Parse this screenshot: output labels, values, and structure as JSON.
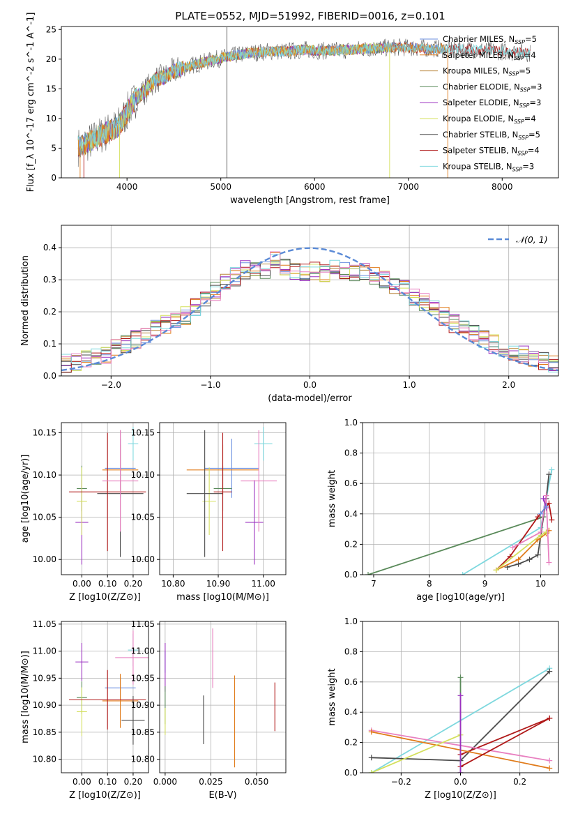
{
  "figure_title": "PLATE=0552, MJD=51992, FIBERID=0016, z=0.101",
  "colors": {
    "Chabrier MILES": "#6b8fdf",
    "Salpeter MILES": "#e07b1a",
    "Kroupa MILES": "#b8863b",
    "Chabrier ELODIE": "#5a8a5a",
    "Salpeter ELODIE": "#9b30c0",
    "Kroupa ELODIE": "#d4e05c",
    "Chabrier STELIB": "#4a4a4a",
    "Salpeter STELIB": "#b01818",
    "Kroupa STELIB": "#7ed8de",
    "Kroupa STELIB (alt)": "#e880c0",
    "normal": "#5a8ad6",
    "grid": "#b0b0b0"
  },
  "chart_data": [
    {
      "type": "line",
      "title": "PLATE=0552, MJD=51992, FIBERID=0016, z=0.101",
      "xlabel": "wavelength [Angstrom, rest frame]",
      "ylabel": "Flux [f_λ 10^-17 erg cm^-2 s^-1 A^-1]",
      "xlim": [
        3300,
        8600
      ],
      "ylim": [
        0,
        25.5
      ],
      "xticks": [
        4000,
        5000,
        6000,
        7000,
        8000
      ],
      "yticks": [
        0,
        5,
        10,
        15,
        20,
        25
      ],
      "grid": false,
      "legend_position": "right",
      "legend": [
        {
          "label": "Chabrier MILES, N",
          "sub": "SSP",
          "suffix": "=5"
        },
        {
          "label": "Salpeter MILES, N",
          "sub": "SSP",
          "suffix": "=4"
        },
        {
          "label": "Kroupa MILES, N",
          "sub": "SSP",
          "suffix": "=5"
        },
        {
          "label": "Chabrier ELODIE, N",
          "sub": "SSP",
          "suffix": "=3"
        },
        {
          "label": "Salpeter ELODIE, N",
          "sub": "SSP",
          "suffix": "=3"
        },
        {
          "label": "Kroupa ELODIE, N",
          "sub": "SSP",
          "suffix": "=4"
        },
        {
          "label": "Chabrier STELIB, N",
          "sub": "SSP",
          "suffix": "=5"
        },
        {
          "label": "Salpeter STELIB, N",
          "sub": "SSP",
          "suffix": "=4"
        },
        {
          "label": "Kroupa STELIB, N",
          "sub": "SSP",
          "suffix": "=3"
        }
      ],
      "continuum_x": [
        3480,
        3600,
        3700,
        3800,
        3900,
        4000,
        4100,
        4200,
        4300,
        4400,
        4500,
        4700,
        4900,
        5100,
        5300,
        5500,
        5700,
        5900,
        6100,
        6300,
        6600,
        6900,
        7200,
        7500,
        7800,
        8100,
        8300
      ],
      "continuum_y": [
        5.2,
        6.0,
        7.0,
        7.8,
        8.6,
        11.0,
        13.5,
        14.8,
        16.5,
        17.0,
        18.0,
        19.0,
        19.8,
        20.5,
        21.0,
        21.3,
        21.3,
        21.6,
        21.4,
        21.5,
        21.8,
        22.0,
        21.8,
        21.7,
        21.5,
        21.2,
        21.0
      ]
    },
    {
      "type": "bar",
      "xlabel": "(data-model)/error",
      "ylabel": "Normed distribution",
      "xlim": [
        -2.5,
        2.5
      ],
      "ylim": [
        0,
        0.47
      ],
      "xticks": [
        -2,
        -1,
        0,
        1,
        2
      ],
      "yticks": [
        0.0,
        0.1,
        0.2,
        0.3,
        0.4
      ],
      "grid": true,
      "legend_position": "top-right",
      "legend": [
        "𝒩(0, 1)"
      ],
      "bin_width": 0.1,
      "bin_centers": [
        -2.45,
        -2.35,
        -2.25,
        -2.15,
        -2.05,
        -1.95,
        -1.85,
        -1.75,
        -1.65,
        -1.55,
        -1.45,
        -1.35,
        -1.25,
        -1.15,
        -1.05,
        -0.95,
        -0.85,
        -0.75,
        -0.65,
        -0.55,
        -0.45,
        -0.35,
        -0.25,
        -0.15,
        -0.05,
        0.05,
        0.15,
        0.25,
        0.35,
        0.45,
        0.55,
        0.65,
        0.75,
        0.85,
        0.95,
        1.05,
        1.15,
        1.25,
        1.35,
        1.45,
        1.55,
        1.65,
        1.75,
        1.85,
        1.95,
        2.05,
        2.15,
        2.25,
        2.35,
        2.45
      ],
      "histogram_base": [
        0.04,
        0.045,
        0.05,
        0.055,
        0.065,
        0.085,
        0.1,
        0.115,
        0.13,
        0.145,
        0.16,
        0.175,
        0.19,
        0.215,
        0.235,
        0.265,
        0.29,
        0.31,
        0.33,
        0.34,
        0.33,
        0.36,
        0.34,
        0.33,
        0.32,
        0.33,
        0.32,
        0.34,
        0.33,
        0.32,
        0.33,
        0.315,
        0.3,
        0.28,
        0.27,
        0.25,
        0.23,
        0.21,
        0.185,
        0.165,
        0.15,
        0.13,
        0.115,
        0.1,
        0.085,
        0.075,
        0.065,
        0.055,
        0.045,
        0.04
      ],
      "normal_curve": {
        "mu": 0,
        "sigma": 1
      }
    },
    {
      "type": "scatter",
      "xlabel": "Z [log10(Z/Z⊙)]",
      "ylabel": "age  [log10(age/yr)]",
      "xlim": [
        -0.08,
        0.26
      ],
      "ylim": [
        9.982,
        10.162
      ],
      "xticks": [
        0.0,
        0.1,
        0.2
      ],
      "yticks": [
        10.0,
        10.05,
        10.1,
        10.15
      ],
      "grid": true,
      "points": [
        {
          "s": "Chabrier MILES",
          "x": 0.15,
          "y": 10.108,
          "xerr": 0.06,
          "yerr": 0.035
        },
        {
          "s": "Salpeter MILES",
          "x": 0.15,
          "y": 10.106,
          "xerr": 0.07,
          "yerr": 0.03
        },
        {
          "s": "Chabrier ELODIE",
          "x": 0.0,
          "y": 10.084,
          "xerr": 0.02,
          "yerr": 0.027
        },
        {
          "s": "Salpeter ELODIE",
          "x": 0.0,
          "y": 10.044,
          "xerr": 0.025,
          "yerr": 0.05
        },
        {
          "s": "Kroupa ELODIE",
          "x": 0.0,
          "y": 10.069,
          "xerr": 0.02,
          "yerr": 0.04
        },
        {
          "s": "Chabrier STELIB",
          "x": 0.15,
          "y": 10.078,
          "xerr": 0.09,
          "yerr": 0.075
        },
        {
          "s": "Salpeter STELIB",
          "x": 0.1,
          "y": 10.08,
          "xerr": 0.15,
          "yerr": 0.07
        },
        {
          "s": "Kroupa STELIB",
          "x": 0.2,
          "y": 10.137,
          "xerr": 0.02,
          "yerr": 0.02
        },
        {
          "s": "Kroupa STELIB (alt)",
          "x": 0.15,
          "y": 10.093,
          "xerr": 0.07,
          "yerr": 0.06
        }
      ]
    },
    {
      "type": "scatter",
      "xlabel": "mass [log10(M/M⊙)]",
      "ylabel": "",
      "xlim": [
        10.77,
        11.05
      ],
      "ylim": [
        9.982,
        10.162
      ],
      "xticks": [
        10.8,
        10.9,
        11.0
      ],
      "yticks": [
        10.0,
        10.05,
        10.1,
        10.15
      ],
      "grid": true,
      "points": [
        {
          "s": "Chabrier MILES",
          "x": 10.93,
          "y": 10.108,
          "xerr": 0.06,
          "yerr": 0.035
        },
        {
          "s": "Salpeter MILES",
          "x": 10.91,
          "y": 10.106,
          "xerr": 0.08,
          "yerr": 0.03
        },
        {
          "s": "Chabrier ELODIE",
          "x": 10.91,
          "y": 10.084,
          "xerr": 0.02,
          "yerr": 0.027
        },
        {
          "s": "Salpeter ELODIE",
          "x": 10.98,
          "y": 10.044,
          "xerr": 0.02,
          "yerr": 0.05
        },
        {
          "s": "Kroupa ELODIE",
          "x": 10.88,
          "y": 10.069,
          "xerr": 0.015,
          "yerr": 0.04
        },
        {
          "s": "Chabrier STELIB",
          "x": 10.87,
          "y": 10.078,
          "xerr": 0.04,
          "yerr": 0.075
        },
        {
          "s": "Salpeter STELIB",
          "x": 10.91,
          "y": 10.08,
          "xerr": 0.02,
          "yerr": 0.07
        },
        {
          "s": "Kroupa STELIB",
          "x": 11.0,
          "y": 10.137,
          "xerr": 0.02,
          "yerr": 0.02
        },
        {
          "s": "Kroupa STELIB (alt)",
          "x": 10.99,
          "y": 10.093,
          "xerr": 0.04,
          "yerr": 0.06
        }
      ]
    },
    {
      "type": "line",
      "xlabel": "age  [log10(age/yr)]",
      "ylabel": "mass weight",
      "xlim": [
        6.8,
        10.32
      ],
      "ylim": [
        0,
        1.0
      ],
      "xticks": [
        7,
        8,
        9,
        10
      ],
      "yticks": [
        0.0,
        0.2,
        0.4,
        0.6,
        0.8,
        1.0
      ],
      "grid": true,
      "series": [
        {
          "s": "Chabrier ELODIE",
          "x": [
            6.9,
            10.05
          ],
          "y": [
            0.0,
            0.38
          ]
        },
        {
          "s": "Kroupa STELIB",
          "x": [
            8.6,
            10.0,
            10.2
          ],
          "y": [
            0.0,
            0.31,
            0.69
          ]
        },
        {
          "s": "Chabrier STELIB",
          "x": [
            9.4,
            9.6,
            9.8,
            9.95,
            10.1,
            10.15
          ],
          "y": [
            0.05,
            0.07,
            0.1,
            0.13,
            0.5,
            0.66
          ]
        },
        {
          "s": "Salpeter STELIB",
          "x": [
            9.2,
            9.45,
            9.95,
            10.15,
            10.2
          ],
          "y": [
            0.03,
            0.12,
            0.38,
            0.47,
            0.36
          ]
        },
        {
          "s": "Salpeter MILES",
          "x": [
            9.2,
            9.6,
            9.95,
            10.1,
            10.15
          ],
          "y": [
            0.03,
            0.1,
            0.23,
            0.27,
            0.29
          ]
        },
        {
          "s": "Kroupa ELODIE",
          "x": [
            9.2,
            10.0,
            10.1
          ],
          "y": [
            0.03,
            0.26,
            0.28
          ]
        },
        {
          "s": "Kroupa STELIB (alt)",
          "x": [
            9.5,
            10.0,
            10.1,
            10.15
          ],
          "y": [
            0.18,
            0.28,
            0.52,
            0.08
          ]
        },
        {
          "s": "Salpeter ELODIE",
          "x": [
            10.05,
            10.1
          ],
          "y": [
            0.5,
            0.44
          ]
        },
        {
          "s": "Chabrier MILES",
          "x": [
            10.0,
            10.1
          ],
          "y": [
            0.4,
            0.45
          ]
        }
      ]
    },
    {
      "type": "scatter",
      "xlabel": "Z [log10(Z/Z⊙)]",
      "ylabel": "mass [log10(M/M⊙)]",
      "xlim": [
        -0.08,
        0.26
      ],
      "ylim": [
        10.775,
        11.055
      ],
      "xticks": [
        0.0,
        0.1,
        0.2
      ],
      "yticks": [
        10.8,
        10.85,
        10.9,
        10.95,
        11.0,
        11.05
      ],
      "grid": true,
      "points": [
        {
          "s": "Chabrier MILES",
          "x": 0.15,
          "y": 10.932,
          "xerr": 0.06,
          "yerr": 0.02
        },
        {
          "s": "Salpeter MILES",
          "x": 0.15,
          "y": 10.908,
          "xerr": 0.07,
          "yerr": 0.05
        },
        {
          "s": "Chabrier ELODIE",
          "x": 0.0,
          "y": 10.914,
          "xerr": 0.02,
          "yerr": 0.03
        },
        {
          "s": "Salpeter ELODIE",
          "x": 0.0,
          "y": 10.98,
          "xerr": 0.025,
          "yerr": 0.035
        },
        {
          "s": "Kroupa ELODIE",
          "x": 0.0,
          "y": 10.888,
          "xerr": 0.02,
          "yerr": 0.045
        },
        {
          "s": "Chabrier STELIB",
          "x": 0.2,
          "y": 10.872,
          "xerr": 0.045,
          "yerr": 0.045
        },
        {
          "s": "Salpeter STELIB",
          "x": 0.1,
          "y": 10.91,
          "xerr": 0.15,
          "yerr": 0.055
        },
        {
          "s": "Kroupa STELIB",
          "x": 0.2,
          "y": 11.002,
          "xerr": 0.02,
          "yerr": 0.03
        },
        {
          "s": "Kroupa STELIB (alt)",
          "x": 0.2,
          "y": 10.988,
          "xerr": 0.07,
          "yerr": 0.05
        }
      ]
    },
    {
      "type": "scatter",
      "xlabel": "E(B-V)",
      "ylabel": "",
      "xlim": [
        -0.003,
        0.066
      ],
      "ylim": [
        10.775,
        11.055
      ],
      "xticks": [
        0.0,
        0.025,
        0.05
      ],
      "yticks": [
        10.8,
        10.85,
        10.9,
        10.95,
        11.0,
        11.05
      ],
      "grid": true,
      "points": [
        {
          "s": "Chabrier MILES",
          "x": 0.0,
          "y": 10.98,
          "xerr": 0,
          "yerr": 0.02
        },
        {
          "s": "Salpeter ELODIE",
          "x": 0.0,
          "y": 10.97,
          "xerr": 0,
          "yerr": 0.045
        },
        {
          "s": "Chabrier ELODIE",
          "x": 0.0,
          "y": 10.9,
          "xerr": 0,
          "yerr": 0.035
        },
        {
          "s": "Kroupa ELODIE",
          "x": 0.0,
          "y": 10.87,
          "xerr": 0,
          "yerr": 0.025
        },
        {
          "s": "Chabrier STELIB",
          "x": 0.021,
          "y": 10.873,
          "xerr": 0,
          "yerr": 0.045
        },
        {
          "s": "Kroupa STELIB (alt)",
          "x": 0.026,
          "y": 10.987,
          "xerr": 0,
          "yerr": 0.055
        },
        {
          "s": "Salpeter MILES",
          "x": 0.038,
          "y": 10.87,
          "xerr": 0,
          "yerr": 0.085
        },
        {
          "s": "Salpeter STELIB",
          "x": 0.06,
          "y": 10.897,
          "xerr": 0,
          "yerr": 0.045
        }
      ]
    },
    {
      "type": "line",
      "xlabel": "Z [log10(Z/Z⊙)]",
      "ylabel": "mass weight",
      "xlim": [
        -0.33,
        0.33
      ],
      "ylim": [
        0,
        1.0
      ],
      "xticks": [
        -0.2,
        0.0,
        0.2
      ],
      "yticks": [
        0.0,
        0.2,
        0.4,
        0.6,
        0.8,
        1.0
      ],
      "grid": true,
      "series": [
        {
          "s": "Kroupa STELIB",
          "x": [
            -0.3,
            0.3
          ],
          "y": [
            0.0,
            0.69
          ]
        },
        {
          "s": "Chabrier STELIB",
          "x": [
            -0.3,
            0.0,
            0.3
          ],
          "y": [
            0.1,
            0.08,
            0.67
          ]
        },
        {
          "s": "Salpeter STELIB",
          "x": [
            0.0,
            0.3
          ],
          "y": [
            0.12,
            0.36
          ]
        },
        {
          "s": "Kroupa STELIB (alt)",
          "x": [
            -0.3,
            0.3
          ],
          "y": [
            0.28,
            0.08
          ]
        },
        {
          "s": "Salpeter MILES",
          "x": [
            -0.3,
            0.3
          ],
          "y": [
            0.27,
            0.03
          ]
        },
        {
          "s": "Kroupa ELODIE",
          "x": [
            -0.3,
            0.0
          ],
          "y": [
            0.0,
            0.25
          ]
        },
        {
          "s": "Salpeter STELIB",
          "x": [
            0.0,
            0.3
          ],
          "y": [
            0.04,
            0.36
          ]
        },
        {
          "s": "Chabrier ELODIE",
          "x": [
            0.0,
            0.0
          ],
          "y": [
            0.0,
            0.63
          ]
        },
        {
          "s": "Salpeter ELODIE",
          "x": [
            0.0,
            0.0
          ],
          "y": [
            0.0,
            0.51
          ]
        }
      ]
    }
  ]
}
